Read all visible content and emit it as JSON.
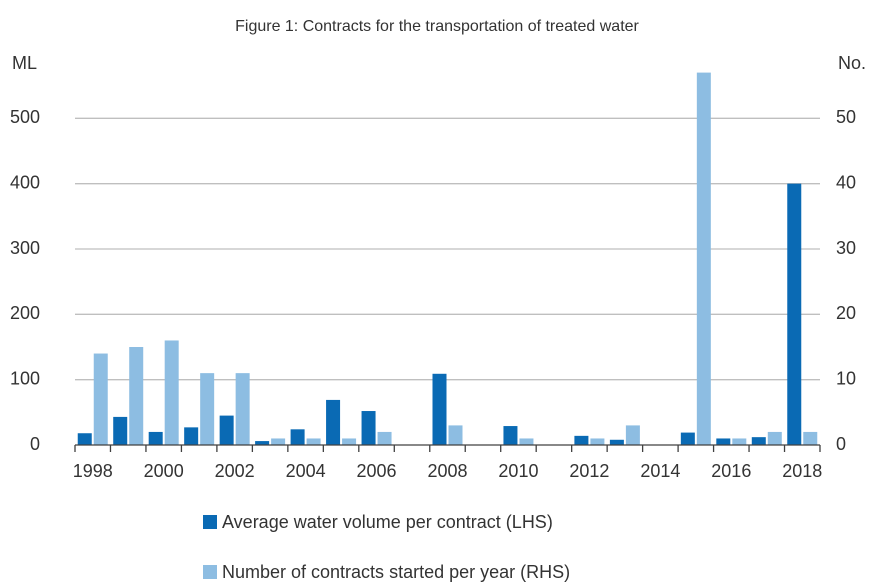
{
  "chart_data": {
    "type": "bar",
    "title": "Figure 1: Contracts for the transportation of treated water",
    "y_label": "ML",
    "y2_label": "No.",
    "categories": [
      "1998",
      null,
      "2000",
      null,
      "2002",
      null,
      "2004",
      null,
      "2006",
      null,
      "2008",
      null,
      "2010",
      null,
      "2012",
      null,
      "2014",
      null,
      "2016",
      null,
      "2018"
    ],
    "series": [
      {
        "name": "Average water volume per contract (LHS)",
        "color": "#0a6ab4",
        "values": [
          18,
          43,
          20,
          27,
          45,
          6,
          24,
          69,
          52,
          0,
          109,
          0,
          29,
          0,
          14,
          8,
          0,
          19,
          10,
          12,
          400
        ]
      },
      {
        "name": "Number of contracts started per year (RHS)",
        "color": "#8dbde2",
        "axis": "y2",
        "values": [
          14,
          15,
          16,
          11,
          11,
          1,
          1,
          1,
          2,
          0,
          3,
          0,
          1,
          0,
          1,
          3,
          0,
          57,
          1,
          2,
          2
        ]
      }
    ],
    "ylim": [
      0,
      600
    ],
    "yticks": [
      0,
      100,
      200,
      300,
      400,
      500
    ],
    "y2lim": [
      0,
      60
    ],
    "y2ticks": [
      0,
      10,
      20,
      30,
      40,
      50
    ],
    "grid": true,
    "legend": "bottom"
  }
}
